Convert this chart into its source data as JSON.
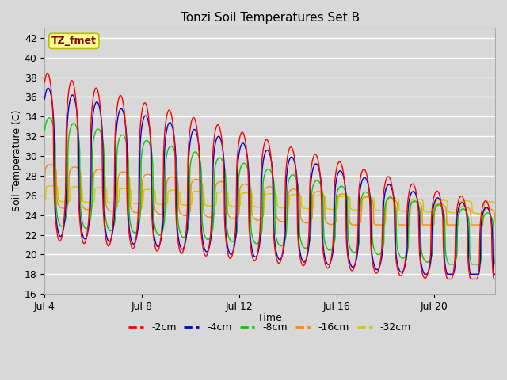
{
  "title": "Tonzi Soil Temperatures Set B",
  "xlabel": "Time",
  "ylabel": "Soil Temperature (C)",
  "ylim": [
    16,
    43
  ],
  "yticks": [
    16,
    18,
    20,
    22,
    24,
    26,
    28,
    30,
    32,
    34,
    36,
    38,
    40,
    42
  ],
  "xtick_positions": [
    0,
    4,
    8,
    12,
    16
  ],
  "xtick_labels": [
    "Jul 4",
    "Jul 8",
    "Jul 12",
    "Jul 16",
    "Jul 20"
  ],
  "xlim": [
    0,
    18.5
  ],
  "legend_label": "TZ_fmet",
  "series_labels": [
    "-2cm",
    "-4cm",
    "-8cm",
    "-16cm",
    "-32cm"
  ],
  "series_colors": [
    "#ff0000",
    "#0000cc",
    "#00cc00",
    "#ff8800",
    "#cccc00"
  ],
  "background_color": "#d8d8d8",
  "plot_bg_color": "#d8d8d8",
  "grid_color": "#ffffff",
  "annotation_bg": "#ffff99",
  "annotation_border": "#bbbb00",
  "annotation_text_color": "#880000",
  "figsize": [
    6.4,
    4.8
  ],
  "dpi": 100
}
